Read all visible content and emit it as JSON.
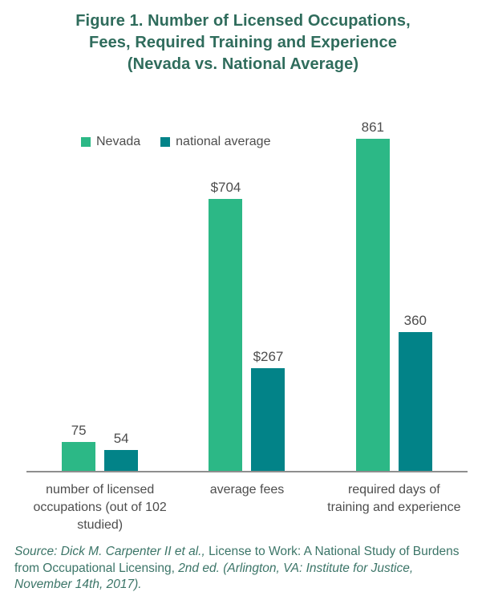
{
  "title_lines": [
    "Figure 1. Number of Licensed Occupations,",
    "Fees, Required Training and Experience",
    "(Nevada vs. National Average)"
  ],
  "chart_data": {
    "type": "bar",
    "title": "Figure 1. Number of Licensed Occupations, Fees, Required Training and Experience (Nevada vs. National Average)",
    "categories": [
      "number of licensed occupations (out of 102 studied)",
      "average fees",
      "required days of training and experience"
    ],
    "categories_display": [
      [
        "number of licensed",
        "occupations (out of 102",
        "studied)"
      ],
      [
        "average fees"
      ],
      [
        "required days of",
        "training and experience"
      ]
    ],
    "series": [
      {
        "name": "Nevada",
        "color": "#2cb886",
        "values": [
          75,
          704,
          861
        ],
        "value_labels": [
          "75",
          "$704",
          "861"
        ]
      },
      {
        "name": "national average",
        "color": "#028388",
        "values": [
          54,
          267,
          360
        ],
        "value_labels": [
          "54",
          "$267",
          "360"
        ]
      }
    ],
    "ylim": [
      0,
      861
    ],
    "xlabel": "",
    "ylabel": "",
    "grid": false,
    "y_axis_visible": false,
    "legend_position": "top-left",
    "data_labels": "above each bar"
  },
  "source": {
    "full_text": "Source: Dick M. Carpenter II et al., License to Work: A National Study of Burdens from Occupational Licensing, 2nd ed. (Arlington, VA: Institute for Justice, November 14th, 2017).",
    "lines": [
      [
        {
          "text": "Source: Dick M. Carpenter II et al., ",
          "italic": true
        },
        {
          "text": "License to Work: A National Study of Burdens",
          "italic": false
        }
      ],
      [
        {
          "text": "from Occupational Licensing, ",
          "italic": false
        },
        {
          "text": "2nd ed. (Arlington, VA: Institute for Justice,",
          "italic": true
        }
      ],
      [
        {
          "text": "November 14th, 2017).",
          "italic": true
        }
      ]
    ]
  },
  "colors": {
    "nevada_green": "#2cb886",
    "national_teal": "#028388",
    "heading_green": "#2f6c5c",
    "source_green": "#3c7568",
    "label_gray": "#4d4d4d",
    "axis_gray": "#8e8e8e",
    "background": "#ffffff"
  }
}
